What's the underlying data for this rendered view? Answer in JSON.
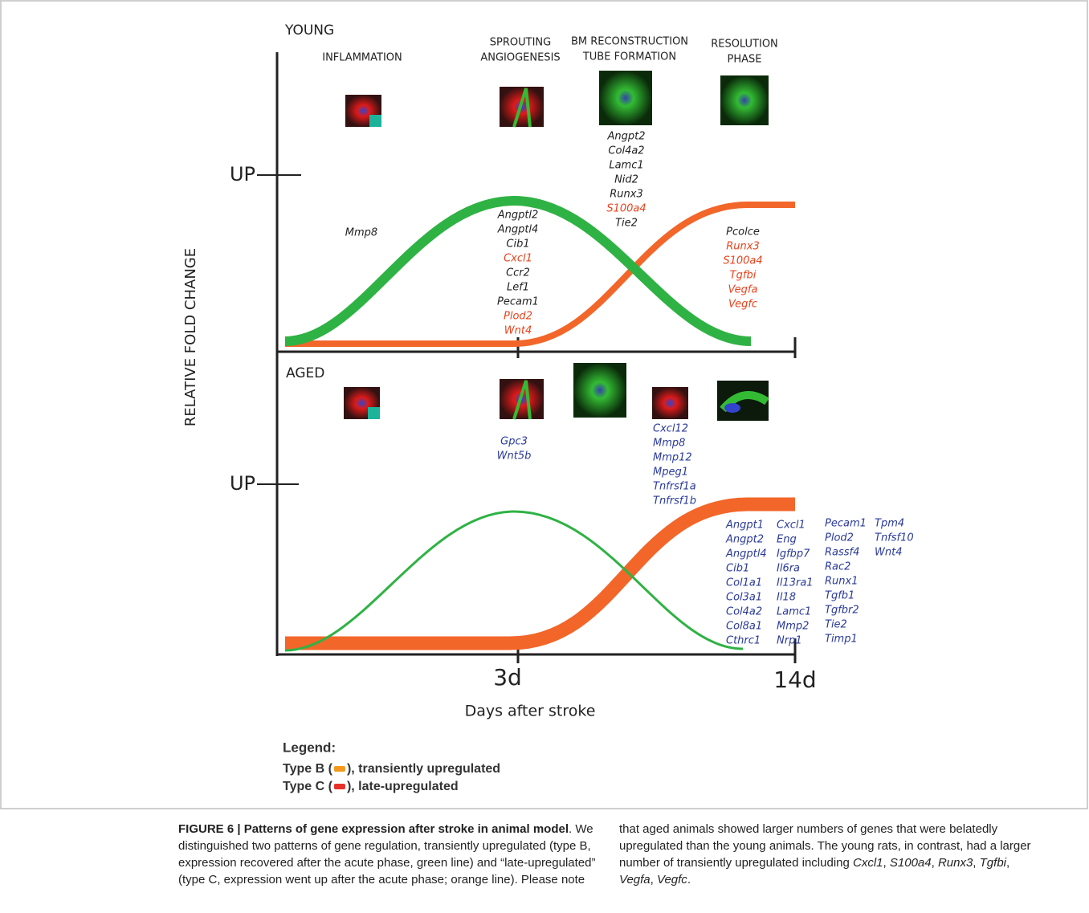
{
  "figure": {
    "panels": [
      {
        "label": "YOUNG",
        "up_label": "UP",
        "phases": [
          {
            "lines": [
              "INFLAMMATION"
            ]
          },
          {
            "lines": [
              "SPROUTING",
              "ANGIOGENESIS"
            ]
          },
          {
            "lines": [
              "BM RECONSTRUCTION",
              "TUBE FORMATION"
            ]
          },
          {
            "lines": [
              "RESOLUTION",
              "PHASE"
            ]
          }
        ],
        "gene_groups": [
          {
            "color": "#222222",
            "genes": [
              "Mmp8"
            ]
          },
          {
            "color": "#222222",
            "genes": [
              "Angptl2",
              "Angptl4",
              "Cib1",
              {
                "name": "Cxcl1",
                "color": "#e8431c"
              },
              "Ccr2",
              "Lef1",
              "Pecam1",
              {
                "name": "Plod2",
                "color": "#e8431c"
              },
              {
                "name": "Wnt4",
                "color": "#e8431c"
              }
            ]
          },
          {
            "color": "#222222",
            "genes": [
              "Angpt2",
              "Col4a2",
              "Lamc1",
              "Nid2",
              "Runx3",
              {
                "name": "S100a4",
                "color": "#e8431c"
              },
              "Tie2"
            ]
          },
          {
            "color": "#e8431c",
            "genes": [
              {
                "name": "Pcolce",
                "color": "#222222"
              },
              "Runx3",
              "S100a4",
              "Tgfbi",
              "Vegfa",
              "Vegfc"
            ]
          }
        ]
      },
      {
        "label": "AGED",
        "up_label": "UP",
        "gene_groups": [
          {
            "color": "#2a3a9a",
            "genes": [
              "Gpc3",
              "Wnt5b"
            ]
          },
          {
            "color": "#2a3a9a",
            "genes": [
              "Cxcl12",
              "Mmp8",
              "Mmp12",
              "Mpeg1",
              "Tnfrsf1a",
              "Tnfrsf1b"
            ]
          },
          {
            "color": "#2a3a9a",
            "genes": [
              "Angpt1",
              "Angpt2",
              "Angptl4",
              "Cib1",
              "Col1a1",
              "Col3a1",
              "Col4a2",
              "Col8a1",
              "Cthrc1"
            ]
          },
          {
            "color": "#2a3a9a",
            "genes": [
              "Cxcl1",
              "Eng",
              "Igfbp7",
              "Il6ra",
              "Il13ra1",
              "Il18",
              "Lamc1",
              "Mmp2",
              "Nrp1"
            ]
          },
          {
            "color": "#2a3a9a",
            "genes": [
              "Pecam1",
              "Plod2",
              "Rassf4",
              "Rac2",
              "Runx1",
              "Tgfb1",
              "Tgfbr2",
              "Tie2",
              "Timp1"
            ]
          },
          {
            "color": "#2a3a9a",
            "genes": [
              "Tpm4",
              "Tnfsf10",
              "Wnt4"
            ]
          }
        ]
      }
    ],
    "y_axis_label": "RELATIVE FOLD CHANGE",
    "x_ticks": [
      "3d",
      "14d"
    ],
    "x_axis_label": "Days after stroke",
    "legend": {
      "title": "Legend:",
      "items": [
        {
          "prefix": "Type B (",
          "color": "#f39a1e",
          "suffix": "), transiently upregulated"
        },
        {
          "prefix": "Type C (",
          "color": "#e8312a",
          "suffix": "), late-upregulated"
        }
      ]
    }
  },
  "caption": {
    "runs": [
      {
        "text": "FIGURE 6 | Patterns of gene expression after stroke in animal model",
        "style": "bold"
      },
      {
        "text": ". We distinguished two patterns of gene regulation, transiently upregulated (type B, expression recovered after the acute phase, green line) and “late-upregulated” (type C, expression went up after the acute phase; orange line). Please note that aged animals showed larger numbers of genes that were belatedly upregulated than the young animals. The young rats, in contrast, had a larger number of transiently upregulated including ",
        "style": "normal"
      },
      {
        "text": "Cxcl1",
        "style": "italic"
      },
      {
        "text": ", ",
        "style": "normal"
      },
      {
        "text": "S100a4",
        "style": "italic"
      },
      {
        "text": ", ",
        "style": "normal"
      },
      {
        "text": "Runx3",
        "style": "italic"
      },
      {
        "text": ", ",
        "style": "normal"
      },
      {
        "text": "Tgfbi",
        "style": "italic"
      },
      {
        "text": ", ",
        "style": "normal"
      },
      {
        "text": "Vegfa",
        "style": "italic"
      },
      {
        "text": ", ",
        "style": "normal"
      },
      {
        "text": "Vegfc",
        "style": "italic"
      },
      {
        "text": ".",
        "style": "normal"
      }
    ]
  }
}
